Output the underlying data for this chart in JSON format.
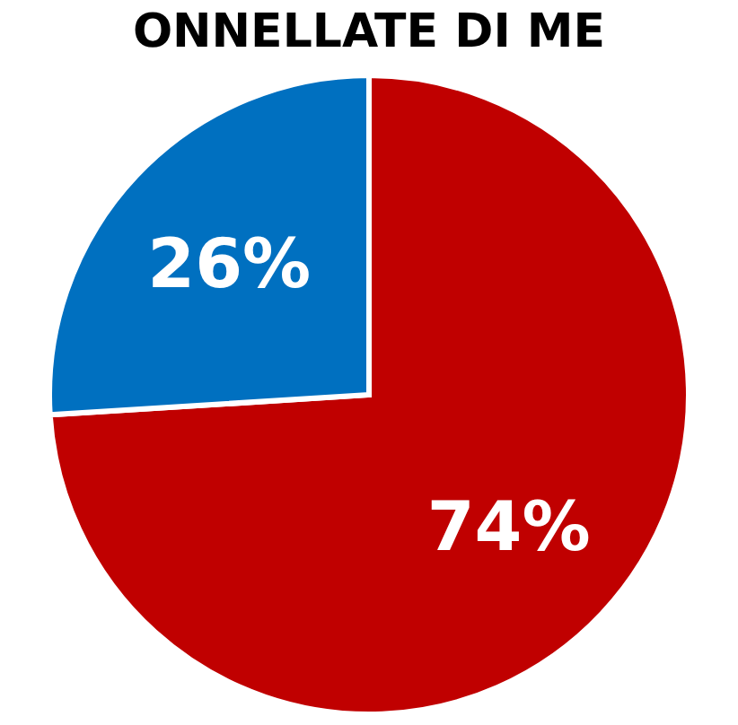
{
  "chart_data": {
    "type": "pie",
    "title": "ONNELLATE DI ME",
    "categories": [
      null,
      null
    ],
    "values": [
      74,
      26
    ],
    "colors": [
      "#c00000",
      "#0070c0"
    ],
    "value_labels": [
      "74%",
      "26%"
    ]
  }
}
